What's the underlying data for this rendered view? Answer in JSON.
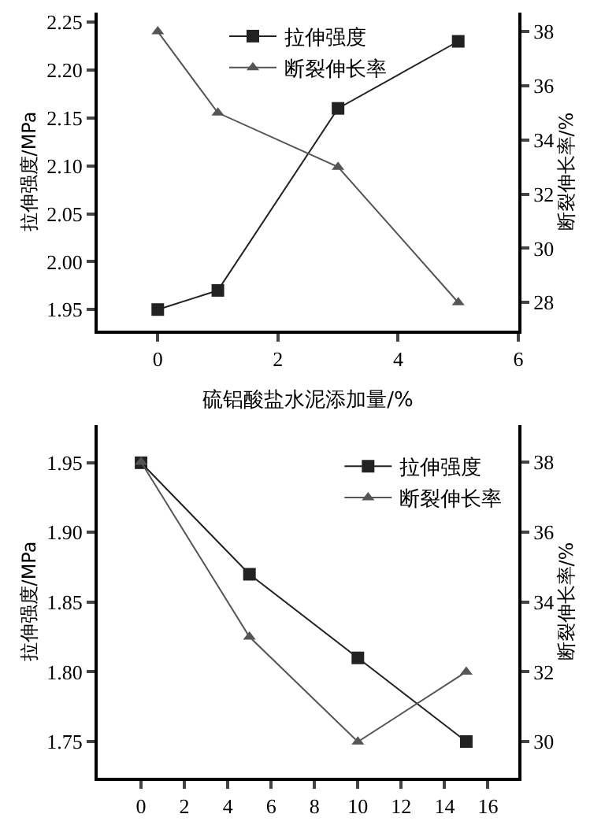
{
  "chart_data": [
    {
      "type": "line",
      "xlabel": "硫铝酸盐水泥添加量/%",
      "ylabel": "拉伸强度/MPa",
      "y2label": "断裂伸长率/%",
      "legend": "top",
      "xlim": [
        -1,
        6
      ],
      "xticks": [
        0,
        2,
        4,
        6
      ],
      "ylim": [
        1.928,
        2.26
      ],
      "yticks": [
        1.95,
        {
          "value": 2.0,
          "label": "2.00"
        },
        2.05,
        {
          "value": 2.1,
          "label": "2.10"
        },
        2.15,
        {
          "value": 2.2,
          "label": "2.20"
        },
        2.25
      ],
      "y2lim": [
        26.96,
        38.7
      ],
      "y2ticks": [
        28,
        30,
        32,
        34,
        36,
        38
      ],
      "series": [
        {
          "name": "拉伸强度",
          "color": "#222222",
          "marker": "square",
          "x": [
            0,
            1,
            3,
            5
          ],
          "values": [
            1.95,
            1.97,
            2.16,
            2.23
          ]
        },
        {
          "name": "断裂伸长率",
          "color": "#555555",
          "marker": "triangle",
          "axis": "y2",
          "x": [
            0,
            1,
            3,
            5
          ],
          "values": [
            38,
            35,
            33,
            28
          ]
        }
      ]
    },
    {
      "type": "line",
      "ylabel": "拉伸强度/MPa",
      "y2label": "断裂伸长率/%",
      "legend": "top right",
      "xlim": [
        -2,
        17.4
      ],
      "xticks": [
        0,
        2,
        4,
        6,
        8,
        10,
        12,
        14,
        16
      ],
      "ylim": [
        1.724,
        1.977
      ],
      "yticks": [
        1.75,
        {
          "value": 1.8,
          "label": "1.80"
        },
        1.85,
        {
          "value": 1.9,
          "label": "1.90"
        },
        1.95
      ],
      "y2lim": [
        28.97,
        39.06
      ],
      "y2ticks": [
        30,
        32,
        34,
        36,
        38
      ],
      "series": [
        {
          "name": "拉伸强度",
          "color": "#222222",
          "marker": "square",
          "x": [
            0,
            5,
            10,
            15
          ],
          "values": [
            1.95,
            1.87,
            1.81,
            1.75
          ]
        },
        {
          "name": "断裂伸长率",
          "color": "#555555",
          "marker": "triangle",
          "axis": "y2",
          "x": [
            0,
            5,
            10,
            15
          ],
          "values": [
            38,
            33,
            30,
            32
          ]
        }
      ]
    }
  ]
}
